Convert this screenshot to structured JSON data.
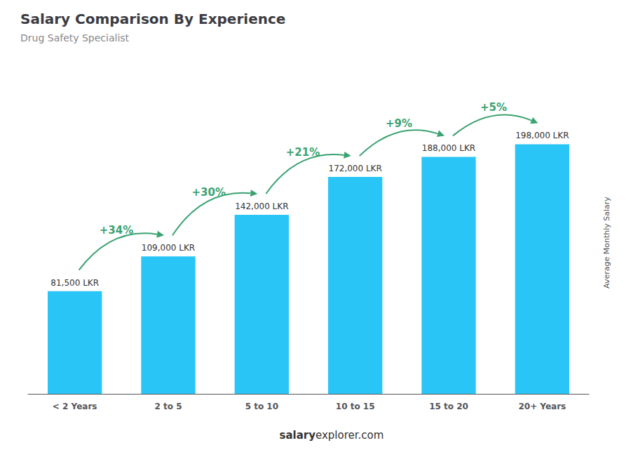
{
  "chart_data": {
    "type": "bar",
    "title": "Salary Comparison By Experience",
    "subtitle": "Drug Safety Specialist",
    "ylabel": "Average Monthly Salary",
    "categories": [
      "< 2 Years",
      "2 to 5",
      "5 to 10",
      "10 to 15",
      "15 to 20",
      "20+ Years"
    ],
    "values": [
      81500,
      109000,
      142000,
      172000,
      188000,
      198000
    ],
    "value_labels": [
      "81,500 LKR",
      "109,000 LKR",
      "142,000 LKR",
      "172,000 LKR",
      "188,000 LKR",
      "198,000 LKR"
    ],
    "data_labels": true,
    "color": "#29c5f6",
    "ylim": [
      0,
      240000
    ],
    "grid": false,
    "tick_labels": "x",
    "annotations": [
      "+34%",
      "+30%",
      "+21%",
      "+9%",
      "+5%"
    ],
    "footer": [
      "salary",
      "explorer.com"
    ]
  }
}
